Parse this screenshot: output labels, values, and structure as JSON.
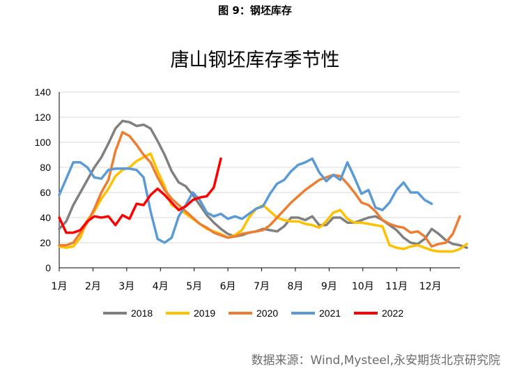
{
  "figure_label": "图 9：钢坯库存",
  "source_note": "数据来源：Wind,Mysteel,永安期货北京研究院",
  "chart_data": {
    "type": "line",
    "title": "唐山钢坯库存季节性",
    "xlabel": "",
    "ylabel": "",
    "ylim": [
      0,
      140
    ],
    "yticks": [
      0,
      20,
      40,
      60,
      80,
      100,
      120,
      140
    ],
    "x_tick_labels": [
      "1月",
      "2月",
      "3月",
      "4月",
      "5月",
      "6月",
      "7月",
      "8月",
      "9月",
      "10月",
      "11月",
      "12月"
    ],
    "x_unit": "week",
    "grid": true,
    "legend_position": "bottom",
    "series": [
      {
        "name": "2018",
        "color": "#808080",
        "values": [
          [
            1,
            31
          ],
          [
            2,
            37
          ],
          [
            3,
            50
          ],
          [
            4,
            60
          ],
          [
            5,
            70
          ],
          [
            6,
            80
          ],
          [
            7,
            88
          ],
          [
            8,
            99
          ],
          [
            9,
            111
          ],
          [
            10,
            117
          ],
          [
            11,
            116
          ],
          [
            12,
            113
          ],
          [
            13,
            114
          ],
          [
            14,
            111
          ],
          [
            15,
            101
          ],
          [
            16,
            90
          ],
          [
            17,
            77
          ],
          [
            18,
            68
          ],
          [
            19,
            65
          ],
          [
            20,
            58
          ],
          [
            21,
            50
          ],
          [
            22,
            42
          ],
          [
            23,
            36
          ],
          [
            24,
            31
          ],
          [
            25,
            27
          ],
          [
            26,
            25
          ],
          [
            27,
            26
          ],
          [
            28,
            28
          ],
          [
            29,
            29
          ],
          [
            30,
            31
          ],
          [
            31,
            30
          ],
          [
            32,
            29
          ],
          [
            33,
            33
          ],
          [
            34,
            40
          ],
          [
            35,
            40
          ],
          [
            36,
            38
          ],
          [
            37,
            41
          ],
          [
            38,
            34
          ],
          [
            39,
            34
          ],
          [
            40,
            40
          ],
          [
            41,
            40
          ],
          [
            42,
            36
          ],
          [
            43,
            36
          ],
          [
            44,
            38
          ],
          [
            45,
            40
          ],
          [
            46,
            41
          ],
          [
            47,
            38
          ],
          [
            48,
            34
          ],
          [
            49,
            30
          ],
          [
            50,
            24
          ],
          [
            51,
            20
          ],
          [
            52,
            19
          ],
          [
            53,
            23
          ],
          [
            54,
            31
          ],
          [
            55,
            27
          ],
          [
            56,
            22
          ],
          [
            57,
            19
          ],
          [
            58,
            18
          ],
          [
            59,
            16
          ]
        ]
      },
      {
        "name": "2019",
        "color": "#ffc000",
        "values": [
          [
            1,
            17
          ],
          [
            2,
            16
          ],
          [
            3,
            17
          ],
          [
            4,
            24
          ],
          [
            5,
            38
          ],
          [
            6,
            45
          ],
          [
            7,
            55
          ],
          [
            8,
            63
          ],
          [
            9,
            73
          ],
          [
            10,
            78
          ],
          [
            11,
            80
          ],
          [
            12,
            85
          ],
          [
            13,
            88
          ],
          [
            14,
            91
          ],
          [
            15,
            77
          ],
          [
            16,
            65
          ],
          [
            17,
            50
          ],
          [
            18,
            47
          ],
          [
            19,
            43
          ],
          [
            20,
            39
          ],
          [
            21,
            35
          ],
          [
            22,
            31
          ],
          [
            23,
            29
          ],
          [
            24,
            27
          ],
          [
            25,
            24
          ],
          [
            26,
            26
          ],
          [
            27,
            30
          ],
          [
            28,
            40
          ],
          [
            29,
            47
          ],
          [
            30,
            50
          ],
          [
            31,
            45
          ],
          [
            32,
            40
          ],
          [
            33,
            38
          ],
          [
            34,
            37
          ],
          [
            35,
            37
          ],
          [
            36,
            35
          ],
          [
            37,
            34
          ],
          [
            38,
            32
          ],
          [
            39,
            37
          ],
          [
            40,
            44
          ],
          [
            41,
            46
          ],
          [
            42,
            39
          ],
          [
            43,
            36
          ],
          [
            44,
            36
          ],
          [
            45,
            35
          ],
          [
            46,
            34
          ],
          [
            47,
            33
          ],
          [
            48,
            18
          ],
          [
            49,
            16
          ],
          [
            50,
            15
          ],
          [
            51,
            17
          ],
          [
            52,
            18
          ],
          [
            53,
            16
          ],
          [
            54,
            14
          ],
          [
            55,
            13
          ],
          [
            56,
            13
          ],
          [
            57,
            13
          ],
          [
            58,
            15
          ],
          [
            59,
            19
          ]
        ]
      },
      {
        "name": "2020",
        "color": "#ed7d31",
        "values": [
          [
            1,
            18
          ],
          [
            2,
            18
          ],
          [
            3,
            20
          ],
          [
            4,
            28
          ],
          [
            5,
            36
          ],
          [
            6,
            47
          ],
          [
            7,
            60
          ],
          [
            8,
            70
          ],
          [
            9,
            93
          ],
          [
            10,
            108
          ],
          [
            11,
            105
          ],
          [
            12,
            98
          ],
          [
            13,
            90
          ],
          [
            14,
            84
          ],
          [
            15,
            72
          ],
          [
            16,
            62
          ],
          [
            17,
            55
          ],
          [
            18,
            50
          ],
          [
            19,
            45
          ],
          [
            20,
            40
          ],
          [
            21,
            35
          ],
          [
            22,
            32
          ],
          [
            23,
            28
          ],
          [
            24,
            26
          ],
          [
            25,
            24
          ],
          [
            26,
            25
          ],
          [
            27,
            27
          ],
          [
            28,
            28
          ],
          [
            29,
            29
          ],
          [
            30,
            30
          ],
          [
            31,
            34
          ],
          [
            32,
            40
          ],
          [
            33,
            46
          ],
          [
            34,
            52
          ],
          [
            35,
            57
          ],
          [
            36,
            62
          ],
          [
            37,
            66
          ],
          [
            38,
            70
          ],
          [
            39,
            72
          ],
          [
            40,
            74
          ],
          [
            41,
            73
          ],
          [
            42,
            67
          ],
          [
            43,
            60
          ],
          [
            44,
            52
          ],
          [
            45,
            50
          ],
          [
            46,
            45
          ],
          [
            47,
            38
          ],
          [
            48,
            35
          ],
          [
            49,
            33
          ],
          [
            50,
            32
          ],
          [
            51,
            28
          ],
          [
            52,
            29
          ],
          [
            53,
            25
          ],
          [
            54,
            17
          ],
          [
            55,
            19
          ],
          [
            56,
            20
          ],
          [
            57,
            27
          ],
          [
            58,
            41
          ]
        ]
      },
      {
        "name": "2021",
        "color": "#5b9bd5",
        "values": [
          [
            1,
            58
          ],
          [
            2,
            71
          ],
          [
            3,
            84
          ],
          [
            4,
            84
          ],
          [
            5,
            80
          ],
          [
            6,
            72
          ],
          [
            7,
            71
          ],
          [
            8,
            78
          ],
          [
            9,
            79
          ],
          [
            10,
            79
          ],
          [
            11,
            79
          ],
          [
            12,
            78
          ],
          [
            13,
            72
          ],
          [
            14,
            45
          ],
          [
            15,
            23
          ],
          [
            16,
            20
          ],
          [
            17,
            24
          ],
          [
            18,
            41
          ],
          [
            19,
            50
          ],
          [
            20,
            60
          ],
          [
            21,
            54
          ],
          [
            22,
            44
          ],
          [
            23,
            41
          ],
          [
            24,
            43
          ],
          [
            25,
            39
          ],
          [
            26,
            41
          ],
          [
            27,
            39
          ],
          [
            28,
            43
          ],
          [
            29,
            47
          ],
          [
            30,
            49
          ],
          [
            31,
            59
          ],
          [
            32,
            67
          ],
          [
            33,
            70
          ],
          [
            34,
            77
          ],
          [
            35,
            82
          ],
          [
            36,
            84
          ],
          [
            37,
            87
          ],
          [
            38,
            76
          ],
          [
            39,
            69
          ],
          [
            40,
            74
          ],
          [
            41,
            70
          ],
          [
            42,
            84
          ],
          [
            43,
            72
          ],
          [
            44,
            59
          ],
          [
            45,
            62
          ],
          [
            46,
            48
          ],
          [
            47,
            46
          ],
          [
            48,
            52
          ],
          [
            49,
            62
          ],
          [
            50,
            68
          ],
          [
            51,
            60
          ],
          [
            52,
            60
          ],
          [
            53,
            54
          ],
          [
            54,
            51
          ]
        ]
      },
      {
        "name": "2022",
        "color": "#ff0000",
        "values": [
          [
            1,
            40
          ],
          [
            2,
            28
          ],
          [
            3,
            28
          ],
          [
            4,
            30
          ],
          [
            5,
            37
          ],
          [
            6,
            41
          ],
          [
            7,
            40
          ],
          [
            8,
            41
          ],
          [
            9,
            34
          ],
          [
            10,
            42
          ],
          [
            11,
            39
          ],
          [
            12,
            51
          ],
          [
            13,
            50
          ],
          [
            14,
            58
          ],
          [
            15,
            63
          ],
          [
            16,
            58
          ],
          [
            17,
            52
          ],
          [
            18,
            46
          ],
          [
            19,
            49
          ],
          [
            20,
            54
          ],
          [
            21,
            56
          ],
          [
            22,
            57
          ],
          [
            23,
            64
          ],
          [
            24,
            87
          ]
        ]
      }
    ]
  }
}
